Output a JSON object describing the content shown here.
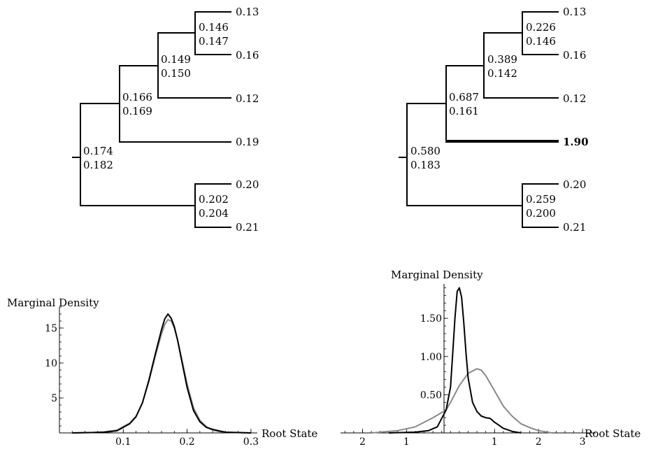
{
  "tree_left": {
    "internal_labels": [
      [
        "0.146",
        "0.147"
      ],
      [
        "0.149",
        "0.150"
      ],
      [
        "0.166",
        "0.169"
      ],
      [
        "0.174",
        "0.182"
      ],
      [
        "0.202",
        "0.204"
      ]
    ],
    "tips": [
      "0.13",
      "0.16",
      "0.12",
      "0.19",
      "0.20",
      "0.21"
    ]
  },
  "tree_right": {
    "internal_labels": [
      [
        "0.226",
        "0.146"
      ],
      [
        "0.389",
        "0.142"
      ],
      [
        "0.687",
        "0.161"
      ],
      [
        "0.580",
        "0.183"
      ],
      [
        "0.259",
        "0.200"
      ]
    ],
    "tips": [
      "0.13",
      "0.16",
      "0.12",
      "1.90",
      "0.20",
      "0.21"
    ],
    "highlighted_tip": "1.90"
  },
  "chart_data": [
    {
      "type": "line",
      "ylabel": "Marginal Density",
      "xlabel": "Root State",
      "xlim": [
        0.0,
        0.31
      ],
      "ylim": [
        0,
        18
      ],
      "xticks": [
        0.1,
        0.2,
        0.3
      ],
      "xtick_labels": [
        "0.1",
        "0.2",
        "0.3"
      ],
      "yticks": [
        5,
        10,
        15
      ],
      "ytick_labels": [
        "5",
        "10",
        "15"
      ],
      "series": [
        {
          "color": "#000000",
          "x": [
            0.02,
            0.05,
            0.07,
            0.09,
            0.1,
            0.11,
            0.12,
            0.13,
            0.14,
            0.15,
            0.16,
            0.165,
            0.17,
            0.175,
            0.18,
            0.185,
            0.19,
            0.2,
            0.21,
            0.22,
            0.23,
            0.24,
            0.25,
            0.26,
            0.28,
            0.3
          ],
          "y": [
            0,
            0.05,
            0.1,
            0.3,
            0.8,
            1.3,
            2.3,
            4.3,
            7.5,
            11.2,
            14.8,
            16.3,
            17.0,
            16.4,
            15.2,
            13.3,
            11.0,
            6.5,
            3.2,
            1.6,
            0.8,
            0.5,
            0.3,
            0.1,
            0.05,
            0
          ]
        },
        {
          "color": "#888888",
          "x": [
            0.02,
            0.05,
            0.07,
            0.09,
            0.1,
            0.11,
            0.12,
            0.13,
            0.14,
            0.15,
            0.16,
            0.165,
            0.17,
            0.175,
            0.18,
            0.185,
            0.19,
            0.2,
            0.21,
            0.22,
            0.23,
            0.24,
            0.25,
            0.26,
            0.28,
            0.3
          ],
          "y": [
            0,
            0.05,
            0.15,
            0.4,
            0.9,
            1.4,
            2.4,
            4.3,
            7.3,
            10.9,
            14.2,
            15.5,
            16.2,
            16.0,
            15.0,
            13.3,
            11.2,
            7.0,
            3.6,
            1.8,
            0.9,
            0.4,
            0.2,
            0.1,
            0.05,
            0
          ]
        }
      ]
    },
    {
      "type": "line",
      "ylabel": "Marginal Density",
      "xlabel": "Root State",
      "xlim": [
        -2.5,
        3.3
      ],
      "ylim": [
        0,
        1.95
      ],
      "xticks": [
        -2,
        -1,
        1,
        2,
        3
      ],
      "xtick_labels": [
        "2",
        "1",
        "1",
        "2",
        "3"
      ],
      "yticks": [
        0.5,
        1.0,
        1.5
      ],
      "ytick_labels": [
        "0.50",
        "1.00",
        "1.50"
      ],
      "series": [
        {
          "color": "#000000",
          "x": [
            -1.4,
            -0.8,
            -0.5,
            -0.3,
            -0.1,
            0.0,
            0.05,
            0.1,
            0.15,
            0.2,
            0.25,
            0.3,
            0.35,
            0.4,
            0.5,
            0.6,
            0.7,
            0.8,
            0.9,
            1.0,
            1.1,
            1.2,
            1.3,
            1.4,
            1.6
          ],
          "y": [
            0,
            0.01,
            0.03,
            0.08,
            0.3,
            0.6,
            1.05,
            1.5,
            1.85,
            1.9,
            1.78,
            1.45,
            1.05,
            0.72,
            0.4,
            0.28,
            0.22,
            0.2,
            0.19,
            0.14,
            0.1,
            0.06,
            0.04,
            0.02,
            0
          ]
        },
        {
          "color": "#888888",
          "x": [
            -1.8,
            -1.2,
            -0.8,
            -0.4,
            -0.1,
            0.0,
            0.2,
            0.4,
            0.6,
            0.7,
            0.8,
            1.0,
            1.2,
            1.4,
            1.6,
            1.8,
            2.0,
            2.3
          ],
          "y": [
            0,
            0.03,
            0.08,
            0.2,
            0.3,
            0.4,
            0.62,
            0.78,
            0.84,
            0.82,
            0.75,
            0.55,
            0.35,
            0.22,
            0.12,
            0.07,
            0.03,
            0
          ]
        }
      ]
    }
  ]
}
